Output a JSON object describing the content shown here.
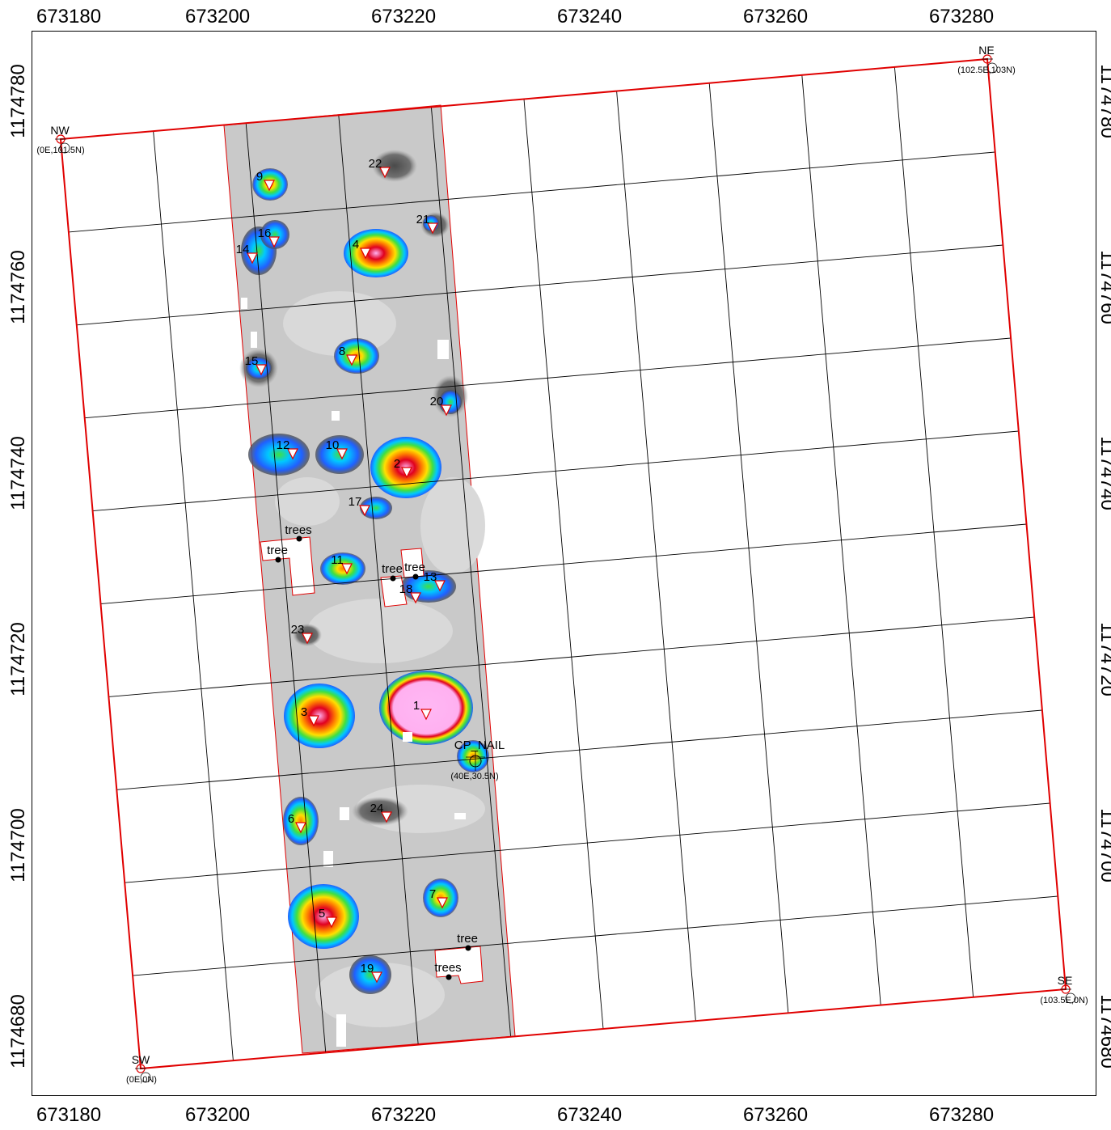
{
  "map": {
    "x_ticks": [
      "673180",
      "673200",
      "673220",
      "673240",
      "673260",
      "673280"
    ],
    "y_ticks": [
      "1174780",
      "1174760",
      "1174740",
      "1174720",
      "1174700",
      "1174680"
    ],
    "right_ticks": [
      "1174780",
      "1174760",
      "1174740",
      "1174720",
      "1174700",
      "1174680"
    ],
    "corners": [
      {
        "id": "NW",
        "label": "NW",
        "coords": "(0E,101.5N)"
      },
      {
        "id": "NE",
        "label": "NE",
        "coords": "(102.5E,103N)"
      },
      {
        "id": "SE",
        "label": "SE",
        "coords": "(103.5E,0N)"
      },
      {
        "id": "SW",
        "label": "SW",
        "coords": "(0E,0N)"
      }
    ],
    "control_point": {
      "label": "CP_NAIL",
      "coords": "(40E,30.5N)"
    },
    "targets": [
      "1",
      "2",
      "3",
      "4",
      "5",
      "6",
      "7",
      "8",
      "9",
      "10",
      "11",
      "12",
      "13",
      "14",
      "15",
      "16",
      "17",
      "18",
      "19",
      "20",
      "21",
      "22",
      "23",
      "24"
    ],
    "features": [
      {
        "id": "trees-a",
        "label": "trees"
      },
      {
        "id": "tree-a",
        "label": "tree"
      },
      {
        "id": "tree-b",
        "label": "tree"
      },
      {
        "id": "tree-c",
        "label": "tree"
      },
      {
        "id": "tree-d",
        "label": "tree"
      },
      {
        "id": "trees-b",
        "label": "trees"
      }
    ],
    "colors": {
      "boundary": "#e00000",
      "grid": "#000000",
      "survey_background": "#c8c8c8",
      "ramp": [
        "#2060ff",
        "#00d0ff",
        "#40e040",
        "#ffe000",
        "#ff8000",
        "#e00000",
        "#ffb0f0"
      ]
    }
  }
}
